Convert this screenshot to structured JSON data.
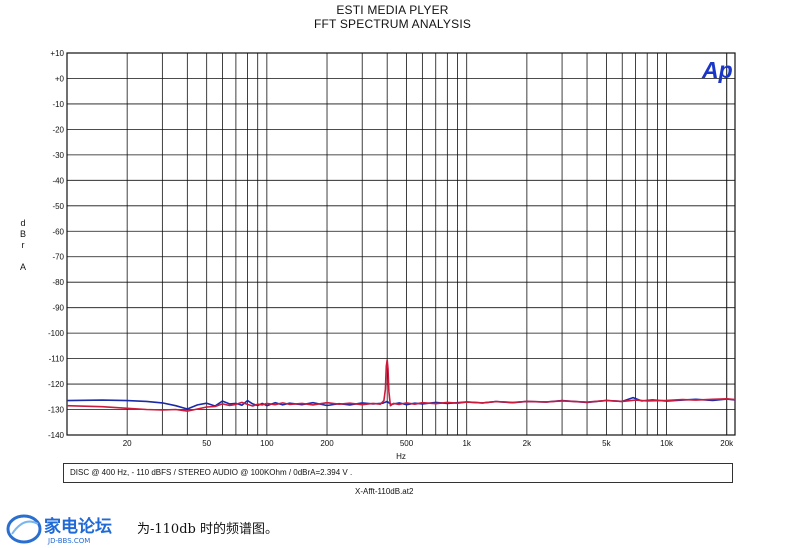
{
  "header": {
    "title": "ESTI MEDIA PLYER",
    "subtitle": "FFT SPECTRUM ANALYSIS"
  },
  "chart_data": {
    "type": "line",
    "title": "ESTI MEDIA PLYER",
    "subtitle": "FFT SPECTRUM ANALYSIS",
    "xlabel": "Hz",
    "ylabel": "dBrA",
    "x_scale": "log",
    "xlim": [
      10,
      22000
    ],
    "ylim": [
      -140,
      10
    ],
    "grid": true,
    "yticks": [
      10,
      0,
      -10,
      -20,
      -30,
      -40,
      -50,
      -60,
      -70,
      -80,
      -90,
      -100,
      -110,
      -120,
      -130,
      -140
    ],
    "ytick_labels": [
      "+10",
      "+0",
      "-10",
      "-20",
      "-30",
      "-40",
      "-50",
      "-60",
      "-70",
      "-80",
      "-90",
      "-100",
      "-110",
      "-120",
      "-130",
      "-140"
    ],
    "xticks": [
      20,
      50,
      100,
      200,
      500,
      1000,
      2000,
      5000,
      10000,
      20000
    ],
    "xtick_labels": [
      "20",
      "50",
      "100",
      "200",
      "500",
      "1k",
      "2k",
      "5k",
      "10k",
      "20k"
    ],
    "series": [
      {
        "color": "#1a2aa8",
        "x": [
          10,
          15,
          20,
          25,
          30,
          35,
          40,
          45,
          50,
          55,
          60,
          65,
          70,
          75,
          80,
          85,
          90,
          95,
          100,
          110,
          120,
          130,
          150,
          170,
          200,
          230,
          260,
          300,
          340,
          380,
          395,
          400,
          405,
          420,
          460,
          500,
          550,
          600,
          700,
          800,
          900,
          1000,
          1200,
          1400,
          1700,
          2000,
          2500,
          3000,
          3500,
          4000,
          5000,
          6000,
          6800,
          7500,
          8500,
          10000,
          12000,
          14000,
          17000,
          20000,
          22000
        ],
        "y": [
          -126.5,
          -126.3,
          -126.5,
          -126.8,
          -127.4,
          -128.5,
          -129.8,
          -128.2,
          -127.5,
          -128.6,
          -126.7,
          -127.8,
          -127.6,
          -128.3,
          -126.5,
          -127.8,
          -128.4,
          -127.6,
          -128.5,
          -127.3,
          -128.2,
          -127.5,
          -128.1,
          -127.3,
          -128.4,
          -127.7,
          -128.2,
          -127.4,
          -127.8,
          -127.5,
          -127.0,
          -126.8,
          -127.2,
          -128.0,
          -127.4,
          -128.1,
          -127.5,
          -127.8,
          -127.2,
          -127.6,
          -127.3,
          -127.0,
          -127.4,
          -126.9,
          -127.3,
          -126.8,
          -127.1,
          -126.5,
          -126.9,
          -127.2,
          -126.4,
          -126.8,
          -125.3,
          -126.6,
          -126.2,
          -126.7,
          -126.3,
          -126.0,
          -126.4,
          -125.9,
          -126.2
        ]
      },
      {
        "color": "#cc1a3c",
        "x": [
          10,
          15,
          20,
          25,
          30,
          35,
          40,
          45,
          50,
          55,
          60,
          65,
          70,
          75,
          80,
          85,
          90,
          95,
          100,
          110,
          120,
          130,
          150,
          170,
          200,
          230,
          260,
          300,
          340,
          370,
          385,
          392,
          396,
          400,
          404,
          408,
          415,
          430,
          460,
          500,
          550,
          600,
          700,
          800,
          900,
          1000,
          1200,
          1400,
          1700,
          2000,
          2500,
          3000,
          3500,
          4000,
          5000,
          6000,
          7000,
          8000,
          10000,
          12000,
          14000,
          17000,
          20000,
          22000
        ],
        "y": [
          -128.5,
          -128.9,
          -129.5,
          -130.0,
          -130.2,
          -130.0,
          -130.6,
          -129.8,
          -129.0,
          -128.8,
          -127.8,
          -128.4,
          -128.0,
          -127.2,
          -128.0,
          -128.6,
          -127.9,
          -128.2,
          -127.6,
          -128.1,
          -127.4,
          -128.0,
          -127.6,
          -128.2,
          -127.3,
          -127.9,
          -127.5,
          -128.1,
          -127.6,
          -127.9,
          -126.5,
          -122.0,
          -113.0,
          -110.5,
          -114.0,
          -123.0,
          -128.5,
          -127.6,
          -128.0,
          -127.4,
          -127.9,
          -127.3,
          -127.7,
          -127.2,
          -127.5,
          -127.1,
          -127.4,
          -126.9,
          -127.2,
          -126.8,
          -127.0,
          -126.6,
          -126.9,
          -127.1,
          -126.5,
          -126.8,
          -126.3,
          -126.6,
          -126.4,
          -126.1,
          -126.3,
          -126.0,
          -125.8,
          -126.1
        ]
      }
    ]
  },
  "axes": {
    "ylabel_chars": [
      "d",
      "B",
      "r",
      "A"
    ],
    "xlabel": "Hz"
  },
  "logo": {
    "text": "Ap",
    "color": "#1a36c8"
  },
  "note": "DISC @ 400 Hz, - 110 dBFS / STEREO AUDIO @ 100KOhm / 0dBrA=2.394 V .",
  "filename": "X-Afft-110dB.at2",
  "watermark": {
    "text": "家电论坛",
    "sub": "JD-BBS.COM"
  },
  "caption": "为-110db 时的频谱图。"
}
